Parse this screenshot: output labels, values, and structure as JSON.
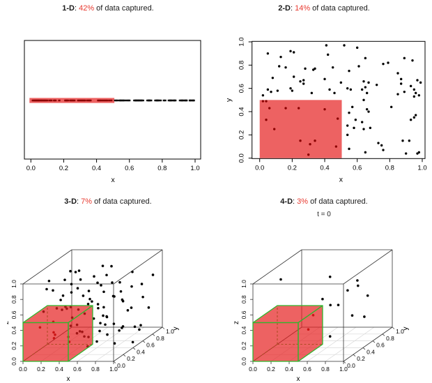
{
  "page": {
    "background": "#ffffff"
  },
  "colors": {
    "highlight_fill": "#e62020",
    "highlight_opacity": 0.7,
    "captured_point": "#8b0000",
    "point": "#000000",
    "cube_edge": "#2eb82e",
    "grid": "#d9d9d9",
    "frame": "#000000",
    "box3d": "#333333",
    "title_percent": "#e8392f"
  },
  "panels": [
    {
      "bold": "1-D",
      "sep": ": ",
      "pct": "42%",
      "rest": " of data captured."
    },
    {
      "bold": "2-D",
      "sep": ": ",
      "pct": "14%",
      "rest": " of data captured."
    },
    {
      "bold": "3-D",
      "sep": ": ",
      "pct": "7%",
      "rest": " of data captured."
    },
    {
      "bold": "4-D",
      "sep": ": ",
      "pct": "3%",
      "rest": " of data captured.",
      "annotation": "t = 0"
    }
  ],
  "chart_data": [
    {
      "type": "scatter",
      "dim": "1d",
      "title": "1-D: 42% of data captured.",
      "captured_percent": 42,
      "xlabel": "x",
      "xlim": [
        0,
        1
      ],
      "xticks": [
        0,
        0.2,
        0.4,
        0.6,
        0.8,
        1
      ],
      "region": {
        "x": [
          0,
          0.5
        ]
      },
      "x": [
        0.012,
        0.02,
        0.027,
        0.033,
        0.04,
        0.046,
        0.052,
        0.06,
        0.067,
        0.075,
        0.083,
        0.09,
        0.1,
        0.115,
        0.125,
        0.142,
        0.15,
        0.173,
        0.21,
        0.217,
        0.225,
        0.24,
        0.248,
        0.256,
        0.265,
        0.288,
        0.296,
        0.305,
        0.313,
        0.322,
        0.33,
        0.345,
        0.355,
        0.363,
        0.41,
        0.418,
        0.428,
        0.44,
        0.452,
        0.463,
        0.477,
        0.49,
        0.513,
        0.52,
        0.528,
        0.541,
        0.55,
        0.558,
        0.57,
        0.582,
        0.592,
        0.6,
        0.63,
        0.637,
        0.644,
        0.651,
        0.659,
        0.667,
        0.675,
        0.683,
        0.71,
        0.717,
        0.724,
        0.732,
        0.758,
        0.765,
        0.773,
        0.781,
        0.79,
        0.81,
        0.818,
        0.84,
        0.847,
        0.855,
        0.863,
        0.872,
        0.88,
        0.908,
        0.916,
        0.924,
        0.932,
        0.94,
        0.948,
        0.968,
        0.976,
        0.984,
        0.992,
        0.545,
        0.563,
        0.64,
        0.655,
        0.67,
        0.72,
        0.77,
        0.85,
        0.875,
        0.92,
        0.945,
        0.97,
        0.99
      ]
    },
    {
      "type": "scatter",
      "dim": "2d",
      "title": "2-D: 14% of data captured.",
      "captured_percent": 14,
      "xlabel": "x",
      "ylabel": "y",
      "xlim": [
        0,
        1
      ],
      "ylim": [
        0,
        1
      ],
      "xticks": [
        0,
        0.2,
        0.4,
        0.6,
        0.8,
        1
      ],
      "yticks": [
        0,
        0.2,
        0.4,
        0.6,
        0.8,
        1
      ],
      "region": {
        "x": [
          0,
          0.5
        ],
        "y": [
          0,
          0.5
        ]
      },
      "points": [
        [
          0.41,
          0.97
        ],
        [
          0.52,
          0.97
        ],
        [
          0.6,
          0.95
        ],
        [
          0.19,
          0.92
        ],
        [
          0.05,
          0.9
        ],
        [
          0.21,
          0.91
        ],
        [
          0.42,
          0.89
        ],
        [
          0.13,
          0.87
        ],
        [
          0.65,
          0.86
        ],
        [
          0.89,
          0.86
        ],
        [
          0.94,
          0.84
        ],
        [
          0.12,
          0.79
        ],
        [
          0.16,
          0.78
        ],
        [
          0.28,
          0.77
        ],
        [
          0.33,
          0.76
        ],
        [
          0.34,
          0.77
        ],
        [
          0.45,
          0.78
        ],
        [
          0.55,
          0.75
        ],
        [
          0.61,
          0.79
        ],
        [
          0.76,
          0.81
        ],
        [
          0.79,
          0.82
        ],
        [
          0.85,
          0.73
        ],
        [
          0.21,
          0.7
        ],
        [
          0.08,
          0.69
        ],
        [
          0.25,
          0.66
        ],
        [
          0.27,
          0.67
        ],
        [
          0.27,
          0.64
        ],
        [
          0.4,
          0.68
        ],
        [
          0.5,
          0.65
        ],
        [
          0.64,
          0.66
        ],
        [
          0.67,
          0.65
        ],
        [
          0.65,
          0.61
        ],
        [
          0.72,
          0.63
        ],
        [
          0.87,
          0.64
        ],
        [
          0.87,
          0.68
        ],
        [
          0.97,
          0.67
        ],
        [
          0.99,
          0.65
        ],
        [
          0.05,
          0.59
        ],
        [
          0.07,
          0.57
        ],
        [
          0.11,
          0.58
        ],
        [
          0.19,
          0.6
        ],
        [
          0.2,
          0.58
        ],
        [
          0.32,
          0.56
        ],
        [
          0.43,
          0.59
        ],
        [
          0.46,
          0.56
        ],
        [
          0.54,
          0.6
        ],
        [
          0.56,
          0.59
        ],
        [
          0.63,
          0.59
        ],
        [
          0.66,
          0.56
        ],
        [
          0.95,
          0.59
        ],
        [
          0.98,
          0.54
        ],
        [
          0.95,
          0.53
        ],
        [
          0.02,
          0.54
        ],
        [
          0.64,
          0.5
        ],
        [
          0.85,
          0.55
        ],
        [
          0.57,
          0.44
        ],
        [
          0.66,
          0.42
        ],
        [
          0.67,
          0.4
        ],
        [
          0.55,
          0.39
        ],
        [
          0.59,
          0.33
        ],
        [
          0.63,
          0.31
        ],
        [
          0.54,
          0.28
        ],
        [
          0.58,
          0.26
        ],
        [
          0.64,
          0.25
        ],
        [
          0.68,
          0.26
        ],
        [
          0.81,
          0.44
        ],
        [
          0.96,
          0.37
        ],
        [
          0.95,
          0.35
        ],
        [
          0.54,
          0.2
        ],
        [
          0.73,
          0.13
        ],
        [
          0.75,
          0.11
        ],
        [
          0.76,
          0.07
        ],
        [
          0.88,
          0.15
        ],
        [
          0.92,
          0.15
        ],
        [
          0.65,
          0.05
        ],
        [
          0.55,
          0.08
        ],
        [
          0.97,
          0.04
        ],
        [
          0.9,
          0.04
        ],
        [
          0.98,
          0.05
        ],
        [
          0.93,
          0.33
        ],
        [
          0.89,
          0.57
        ],
        [
          0.93,
          0.62
        ],
        [
          0.96,
          0.56
        ],
        [
          0.02,
          0.49
        ],
        [
          0.04,
          0.49
        ],
        [
          0.06,
          0.43
        ],
        [
          0.16,
          0.43
        ],
        [
          0.24,
          0.43
        ],
        [
          0.4,
          0.42
        ],
        [
          0.04,
          0.33
        ],
        [
          0.48,
          0.34
        ],
        [
          0.09,
          0.25
        ],
        [
          0.25,
          0.15
        ],
        [
          0.31,
          0.12
        ],
        [
          0.34,
          0.15
        ],
        [
          0.3,
          0.03
        ],
        [
          0.47,
          0.1
        ]
      ]
    },
    {
      "type": "scatter",
      "dim": "3d",
      "title": "3-D: 7% of data captured.",
      "captured_percent": 7,
      "xlabel": "x",
      "ylabel": "y",
      "zlabel": "z",
      "xlim": [
        0,
        1
      ],
      "ylim": [
        0,
        1
      ],
      "zlim": [
        0,
        1
      ],
      "xticks": [
        0,
        0.2,
        0.4,
        0.6,
        0.8,
        1
      ],
      "yticks": [
        0,
        0.2,
        0.4,
        0.6,
        0.8,
        1
      ],
      "zticks": [
        0,
        0.2,
        0.4,
        0.6,
        0.8,
        1
      ],
      "region": {
        "x": [
          0,
          0.5
        ],
        "y": [
          0,
          0.5
        ],
        "z": [
          0,
          0.5
        ]
      },
      "points": [
        [
          0.55,
          0.1,
          0.9
        ],
        [
          0.7,
          0.3,
          0.85
        ],
        [
          0.2,
          0.6,
          0.9
        ],
        [
          0.35,
          0.5,
          0.95
        ],
        [
          0.45,
          0.8,
          0.88
        ],
        [
          0.6,
          0.7,
          0.92
        ],
        [
          0.8,
          0.5,
          0.8
        ],
        [
          0.9,
          0.2,
          0.75
        ],
        [
          0.15,
          0.8,
          0.8
        ],
        [
          0.3,
          0.9,
          0.7
        ],
        [
          0.5,
          0.6,
          0.75
        ],
        [
          0.65,
          0.45,
          0.7
        ],
        [
          0.75,
          0.85,
          0.78
        ],
        [
          0.85,
          0.65,
          0.68
        ],
        [
          0.95,
          0.9,
          0.72
        ],
        [
          0.1,
          0.3,
          0.8
        ],
        [
          0.25,
          0.15,
          0.85
        ],
        [
          0.4,
          0.25,
          0.78
        ],
        [
          0.55,
          0.35,
          0.65
        ],
        [
          0.7,
          0.55,
          0.6
        ],
        [
          0.88,
          0.4,
          0.62
        ],
        [
          0.2,
          0.45,
          0.65
        ],
        [
          0.35,
          0.7,
          0.6
        ],
        [
          0.5,
          0.9,
          0.62
        ],
        [
          0.65,
          0.8,
          0.55
        ],
        [
          0.8,
          0.95,
          0.58
        ],
        [
          0.92,
          0.75,
          0.5
        ],
        [
          0.12,
          0.55,
          0.55
        ],
        [
          0.28,
          0.35,
          0.55
        ],
        [
          0.45,
          0.5,
          0.52
        ],
        [
          0.6,
          0.15,
          0.55
        ],
        [
          0.75,
          0.25,
          0.48
        ],
        [
          0.9,
          0.55,
          0.45
        ],
        [
          0.18,
          0.9,
          0.45
        ],
        [
          0.33,
          0.8,
          0.42
        ],
        [
          0.48,
          0.65,
          0.4
        ],
        [
          0.62,
          0.9,
          0.38
        ],
        [
          0.78,
          0.7,
          0.35
        ],
        [
          0.93,
          0.85,
          0.32
        ],
        [
          0.08,
          0.75,
          0.35
        ],
        [
          0.22,
          0.6,
          0.3
        ],
        [
          0.38,
          0.95,
          0.28
        ],
        [
          0.52,
          0.75,
          0.25
        ],
        [
          0.68,
          0.6,
          0.22
        ],
        [
          0.82,
          0.45,
          0.2
        ],
        [
          0.95,
          0.65,
          0.18
        ],
        [
          0.15,
          0.7,
          0.15
        ],
        [
          0.3,
          0.55,
          0.12
        ],
        [
          0.45,
          0.85,
          0.1
        ],
        [
          0.6,
          0.4,
          0.08
        ],
        [
          0.75,
          0.9,
          0.05
        ],
        [
          0.88,
          0.75,
          0.08
        ],
        [
          0.55,
          0.55,
          0.15
        ],
        [
          0.7,
          0.75,
          0.12
        ],
        [
          0.85,
          0.3,
          0.1
        ],
        [
          0.6,
          0.6,
          0.85
        ],
        [
          0.42,
          0.4,
          0.88
        ],
        [
          0.3,
          0.3,
          0.92
        ],
        [
          0.18,
          0.2,
          0.95
        ],
        [
          0.52,
          0.2,
          0.3
        ],
        [
          0.66,
          0.1,
          0.15
        ],
        [
          0.8,
          0.1,
          0.45
        ],
        [
          0.93,
          0.3,
          0.3
        ],
        [
          0.57,
          0.05,
          0.45
        ],
        [
          0.72,
          0.2,
          0.65
        ],
        [
          0.05,
          0.9,
          0.6
        ],
        [
          0.1,
          0.95,
          0.25
        ],
        [
          0.25,
          0.75,
          0.05
        ],
        [
          0.4,
          0.6,
          0.05
        ],
        [
          0.62,
          0.3,
          0.42
        ],
        [
          0.85,
          0.15,
          0.28
        ],
        [
          0.97,
          0.45,
          0.05
        ],
        [
          0.05,
          0.6,
          0.42
        ],
        [
          0.35,
          0.15,
          0.6
        ],
        [
          0.5,
          0.05,
          0.68
        ],
        [
          0.65,
          0.05,
          0.3
        ],
        [
          0.9,
          0.05,
          0.55
        ],
        [
          0.2,
          0.05,
          0.62
        ],
        [
          0.08,
          0.2,
          0.35
        ],
        [
          0.15,
          0.35,
          0.22
        ],
        [
          0.3,
          0.1,
          0.3
        ],
        [
          0.35,
          0.3,
          0.12
        ],
        [
          0.2,
          0.25,
          0.4
        ],
        [
          0.42,
          0.15,
          0.25
        ],
        [
          0.1,
          0.45,
          0.1
        ]
      ]
    },
    {
      "type": "scatter",
      "dim": "3d",
      "title": "4-D: 3% of data captured.",
      "annotation": "t = 0",
      "captured_percent": 3,
      "xlabel": "x",
      "ylabel": "y",
      "zlabel": "z",
      "xlim": [
        0,
        1
      ],
      "ylim": [
        0,
        1
      ],
      "zlim": [
        0,
        1
      ],
      "xticks": [
        0,
        0.2,
        0.4,
        0.6,
        0.8,
        1
      ],
      "yticks": [
        0,
        0.2,
        0.4,
        0.6,
        0.8,
        1
      ],
      "zticks": [
        0,
        0.2,
        0.4,
        0.6,
        0.8,
        1
      ],
      "region": {
        "x": [
          0,
          0.5
        ],
        "y": [
          0,
          0.5
        ],
        "z": [
          0,
          0.5
        ]
      },
      "points": [
        [
          0.2,
          0.2,
          0.97
        ],
        [
          0.69,
          0.3,
          0.96
        ],
        [
          0.83,
          0.6,
          0.78
        ],
        [
          0.81,
          0.65,
          0.69
        ],
        [
          0.83,
          0.4,
          0.74
        ],
        [
          0.58,
          0.35,
          0.65
        ],
        [
          0.64,
          0.4,
          0.55
        ],
        [
          0.7,
          0.45,
          0.53
        ],
        [
          0.8,
          0.55,
          0.35
        ],
        [
          0.88,
          0.65,
          0.29
        ],
        [
          0.89,
          0.7,
          0.54
        ],
        [
          0.69,
          0.3,
          0.19
        ],
        [
          0.45,
          0.4,
          0.42
        ],
        [
          0.45,
          0.3,
          0.28
        ]
      ]
    }
  ]
}
